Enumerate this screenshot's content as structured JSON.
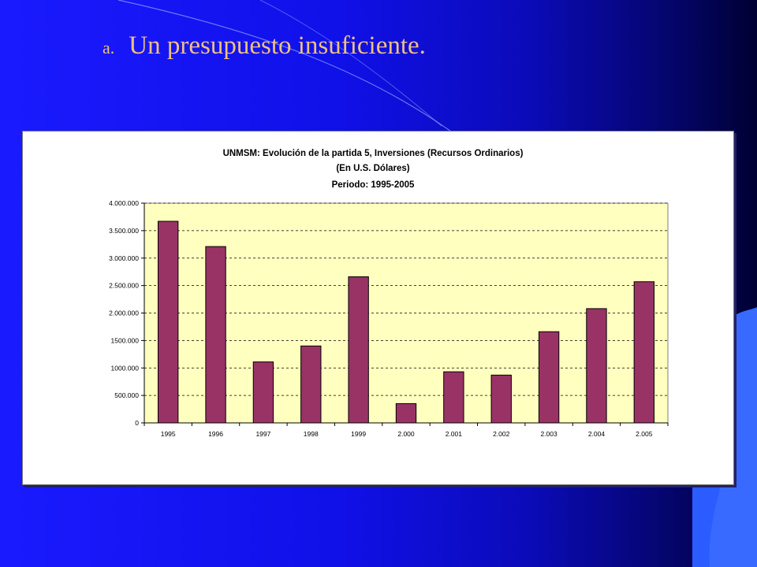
{
  "slide": {
    "marker": "a.",
    "title": "Un presupuesto insuficiente."
  },
  "colors": {
    "title": "#f0c080",
    "plot_background": "#ffffc0",
    "bar_fill": "#993366",
    "bar_stroke": "#000000",
    "gridline": "#000000"
  },
  "chart_data": {
    "type": "bar",
    "title_lines": [
      "UNMSM: Evolución de la partida 5, Inversiones (Recursos Ordinarios)",
      "(En U.S. Dólares)",
      "Periodo: 1995-2005"
    ],
    "categories": [
      "1995",
      "1996",
      "1997",
      "1998",
      "1999",
      "2.000",
      "2.001",
      "2.002",
      "2.003",
      "2.004",
      "2.005"
    ],
    "values": [
      3670000,
      3210000,
      1110000,
      1400000,
      2660000,
      350000,
      930000,
      870000,
      1660000,
      2080000,
      2570000
    ],
    "ylim": [
      0,
      4000000
    ],
    "yticks": [
      0,
      500000,
      1000000,
      1500000,
      2000000,
      2500000,
      3000000,
      3500000,
      4000000
    ],
    "ytick_labels": [
      "0",
      "500.000",
      "1000.000",
      "1500.000",
      "2.000.000",
      "2.500.000",
      "3.000.000",
      "3.500.000",
      "4.000.000"
    ],
    "xlabel": "",
    "ylabel": "",
    "grid": "horizontal dashed",
    "legend": "none"
  }
}
